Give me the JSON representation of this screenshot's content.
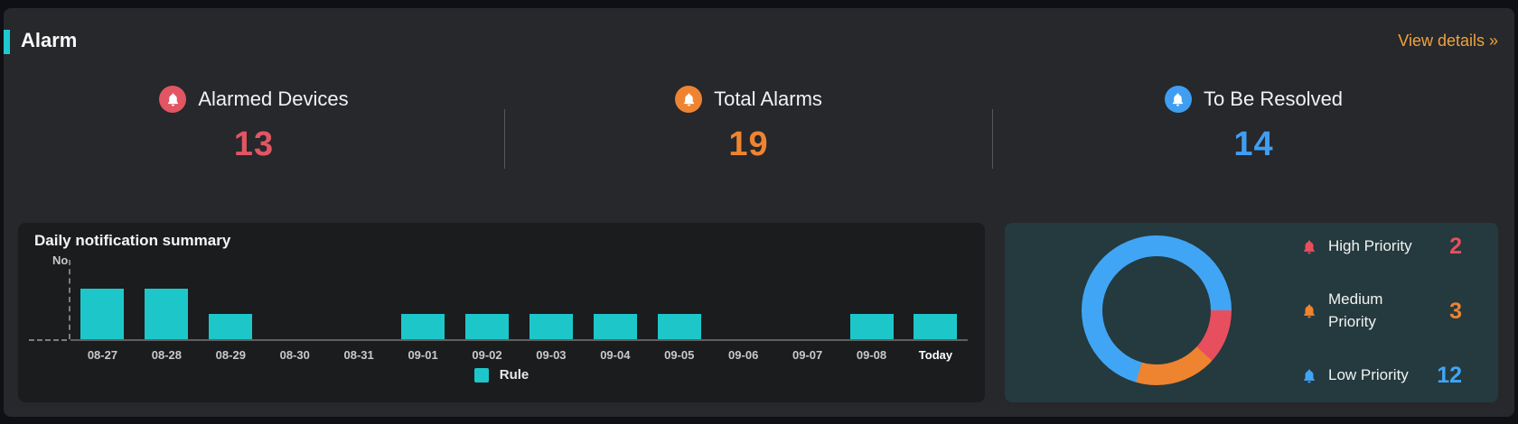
{
  "header": {
    "title": "Alarm",
    "link_label": "View details »",
    "accent_color": "#1ec9cf",
    "link_color": "#f0a23c"
  },
  "stats": {
    "items": [
      {
        "label": "Alarmed Devices",
        "value": "13",
        "color": "#e25563",
        "icon": "bell-icon"
      },
      {
        "label": "Total Alarms",
        "value": "19",
        "color": "#ee8432",
        "icon": "bell-icon"
      },
      {
        "label": "To Be Resolved",
        "value": "14",
        "color": "#3f9ef2",
        "icon": "bell-icon"
      }
    ]
  },
  "chart_data": [
    {
      "type": "bar",
      "title": "Daily notification summary",
      "ylabel": "No.",
      "xlabel": "",
      "categories": [
        "08-27",
        "08-28",
        "08-29",
        "08-30",
        "08-31",
        "09-01",
        "09-02",
        "09-03",
        "09-04",
        "09-05",
        "09-06",
        "09-07",
        "09-08",
        "Today"
      ],
      "series": [
        {
          "name": "Rule",
          "color": "#1dc7c9",
          "values": [
            2,
            2,
            1,
            0,
            0,
            1,
            1,
            1,
            1,
            1,
            0,
            0,
            1,
            1
          ]
        }
      ],
      "ylim": [
        0,
        2.5
      ],
      "grid": false,
      "legend_position": "bottom"
    },
    {
      "type": "pie",
      "donut": true,
      "start_angle_deg": 90,
      "legend_position": "right",
      "segments": [
        {
          "label": "High Priority",
          "value": 2,
          "color": "#e84f5e"
        },
        {
          "label": "Medium Priority",
          "value": 3,
          "color": "#ee8330"
        },
        {
          "label": "Low Priority",
          "value": 12,
          "color": "#41a5f5"
        }
      ]
    }
  ]
}
